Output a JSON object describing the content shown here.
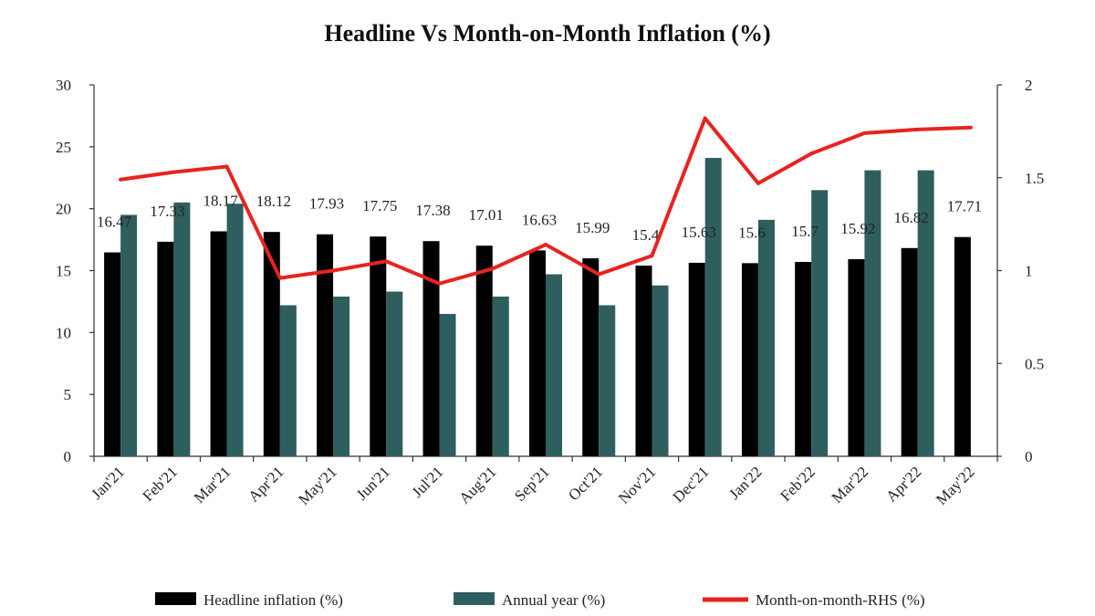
{
  "chart_data": {
    "type": "bar",
    "title": "Headline Vs Month-on-Month Inflation (%)",
    "categories": [
      "Jan'21",
      "Feb'21",
      "Mar'21",
      "Apr'21",
      "May'21",
      "Jun'21",
      "Jul'21",
      "Aug'21",
      "Sep'21",
      "Oct'21",
      "Nov'21",
      "Dec'21",
      "Jan'22",
      "Feb'22",
      "Mar'22",
      "Apr'22",
      "May'22"
    ],
    "y_left": {
      "ticks": [
        "0",
        "5",
        "10",
        "15",
        "20",
        "25",
        "30"
      ],
      "ylim": [
        0,
        30
      ]
    },
    "y_right": {
      "ticks": [
        "0",
        "0.5",
        "1",
        "1.5",
        "2"
      ],
      "ylim": [
        0,
        2
      ]
    },
    "series": [
      {
        "name": "Headline inflation (%)",
        "kind": "bar",
        "axis": "left",
        "color": "#000000",
        "values": [
          16.47,
          17.33,
          18.17,
          18.12,
          17.93,
          17.75,
          17.38,
          17.01,
          16.63,
          15.99,
          15.4,
          15.63,
          15.6,
          15.7,
          15.92,
          16.82,
          17.71
        ],
        "labels": [
          "16.47",
          "17.33",
          "18.17",
          "18.12",
          "17.93",
          "17.75",
          "17.38",
          "17.01",
          "16.63",
          "15.99",
          "15.4",
          "15.63",
          "15.6",
          "15.7",
          "15.92",
          "16.82",
          "17.71"
        ]
      },
      {
        "name": "Annual year (%)",
        "kind": "bar",
        "axis": "left",
        "color": "#2e5e5e",
        "values": [
          19.5,
          20.5,
          20.4,
          12.2,
          12.9,
          13.3,
          11.5,
          12.9,
          14.7,
          12.2,
          13.8,
          24.1,
          19.1,
          21.5,
          23.1,
          23.1,
          null
        ]
      },
      {
        "name": "Month-on-month-RHS (%)",
        "kind": "line",
        "axis": "right",
        "color": "#e8231f",
        "values": [
          1.49,
          1.53,
          1.56,
          0.96,
          1.0,
          1.05,
          0.93,
          1.01,
          1.14,
          0.98,
          1.08,
          1.82,
          1.47,
          1.63,
          1.74,
          1.76,
          1.77
        ]
      }
    ],
    "legend": "bottom",
    "grid": false
  }
}
